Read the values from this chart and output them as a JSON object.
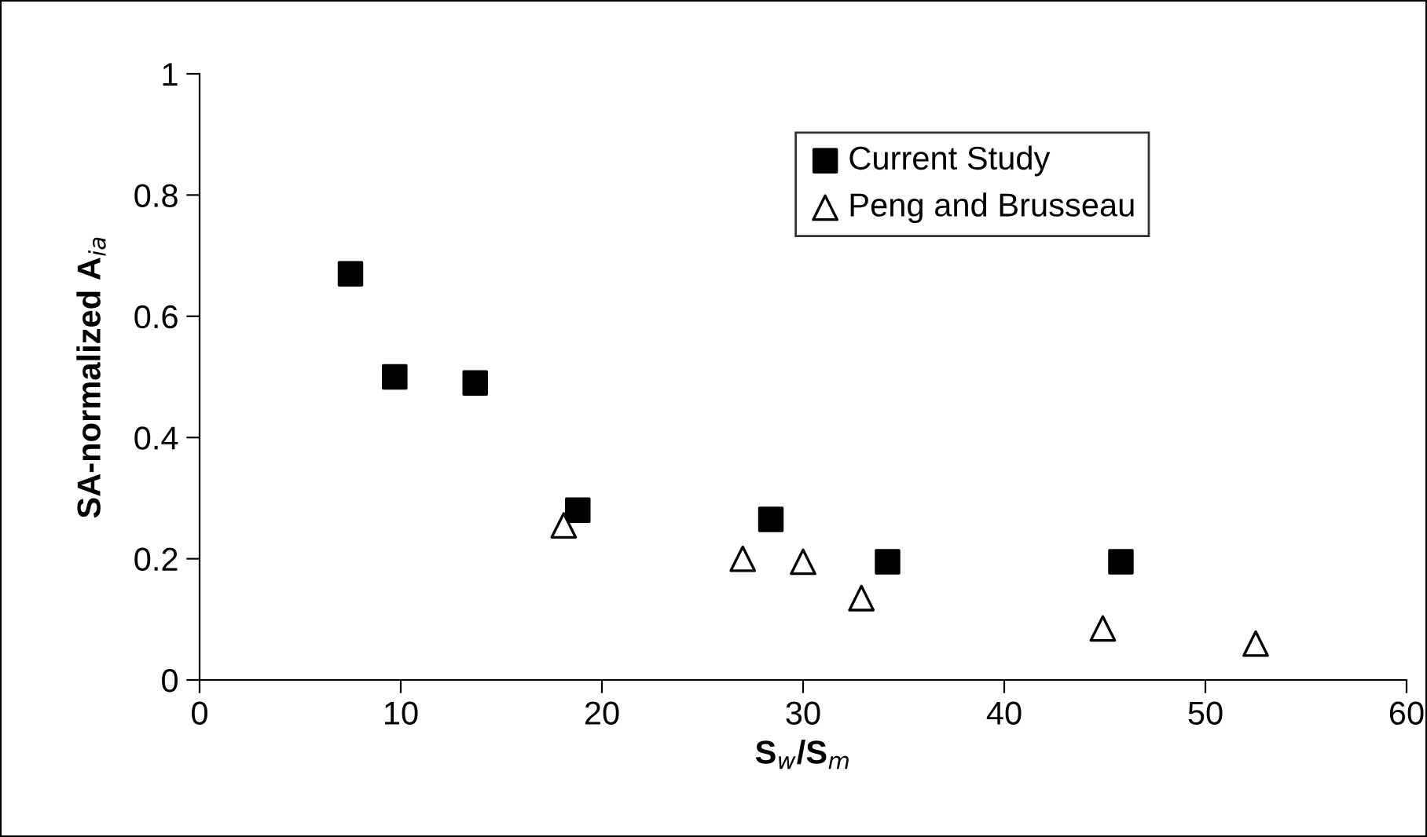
{
  "chart_data": {
    "type": "scatter",
    "xlabel": "S$_{w}$/S$_{m}$",
    "ylabel": "SA-normalized A$_{ia}$",
    "xlim": [
      0,
      60
    ],
    "xticks": [
      0,
      10,
      20,
      30,
      40,
      50,
      60
    ],
    "ylim": [
      0,
      1
    ],
    "yticks": [
      0,
      0.2,
      0.4,
      0.6,
      0.8,
      1
    ],
    "grid": false,
    "legend": "top right",
    "series": [
      {
        "name": "Current Study",
        "color": "#000000",
        "marker": "square",
        "x": [
          7.5,
          9.7,
          13.7,
          18.8,
          28.4,
          34.2,
          45.8
        ],
        "values": [
          0.67,
          0.5,
          0.49,
          0.28,
          0.265,
          0.195,
          0.195
        ]
      },
      {
        "name": "Peng and Brusseau",
        "color": "#000000",
        "marker": "triangle",
        "x": [
          18.1,
          27.0,
          30.0,
          32.9,
          44.9,
          52.5
        ],
        "values": [
          0.255,
          0.2,
          0.195,
          0.135,
          0.085,
          0.06
        ]
      }
    ]
  }
}
